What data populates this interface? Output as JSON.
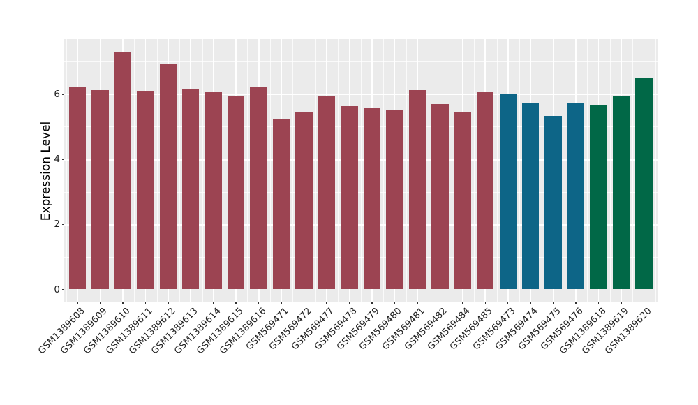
{
  "chart_data": {
    "type": "bar",
    "title": "",
    "xlabel": "",
    "ylabel": "Expression Level",
    "categories": [
      "GSM1389608",
      "GSM1389609",
      "GSM1389610",
      "GSM1389611",
      "GSM1389612",
      "GSM1389613",
      "GSM1389614",
      "GSM1389615",
      "GSM1389616",
      "GSM569471",
      "GSM569472",
      "GSM569477",
      "GSM569478",
      "GSM569479",
      "GSM569480",
      "GSM569481",
      "GSM569482",
      "GSM569484",
      "GSM569485",
      "GSM569473",
      "GSM569474",
      "GSM569475",
      "GSM569476",
      "GSM1389618",
      "GSM1389619",
      "GSM1389620"
    ],
    "values": [
      6.2,
      6.12,
      7.31,
      6.08,
      6.91,
      6.17,
      6.06,
      5.96,
      6.22,
      5.25,
      5.43,
      5.94,
      5.64,
      5.58,
      5.5,
      6.12,
      5.7,
      5.44,
      6.07,
      6.0,
      5.73,
      5.33,
      5.71,
      5.68,
      5.96,
      6.48
    ],
    "bar_groups": [
      "g1",
      "g1",
      "g1",
      "g1",
      "g1",
      "g1",
      "g1",
      "g1",
      "g1",
      "g1",
      "g1",
      "g1",
      "g1",
      "g1",
      "g1",
      "g1",
      "g1",
      "g1",
      "g1",
      "g2",
      "g2",
      "g2",
      "g2",
      "g3",
      "g3",
      "g3"
    ],
    "group_colors": {
      "g1": "#9C4452",
      "g2": "#0D6587",
      "g3": "#016847"
    },
    "yticks": [
      0,
      2,
      4,
      6
    ],
    "y_minor_ticks": [
      1,
      3,
      5,
      7
    ],
    "ylim": [
      0,
      7.68
    ],
    "grid": true,
    "legend_position": "none",
    "panel_bg": "#EBEBEB",
    "grid_color": "#FFFFFF",
    "tick_label_color": "#222222"
  }
}
